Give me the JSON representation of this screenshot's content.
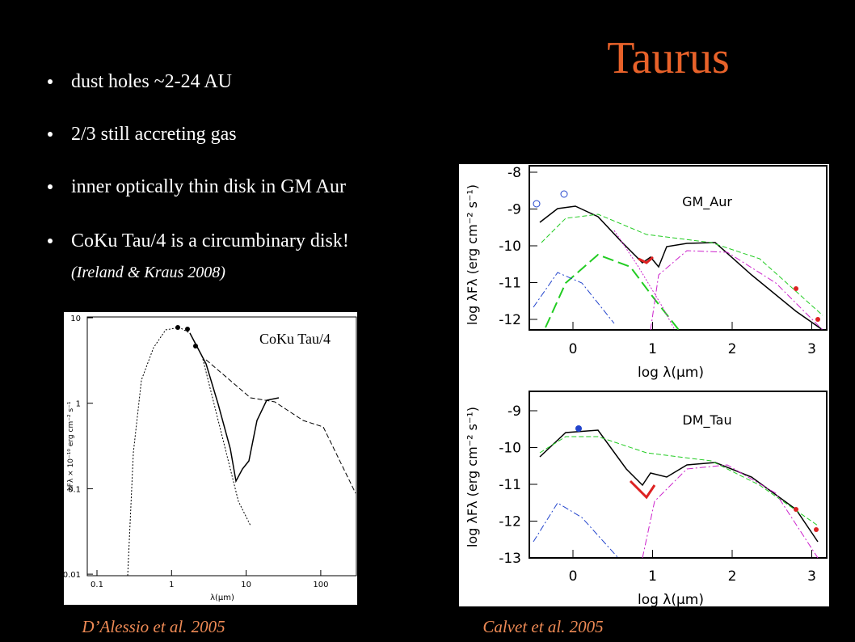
{
  "title": "Taurus",
  "bullets": [
    "dust holes ~2-24 AU",
    "2/3 still accreting gas",
    "inner optically thin disk in GM Aur",
    "CoKu Tau/4 is a circumbinary disk!"
  ],
  "citation": "(Ireland & Kraus 2008)",
  "left_plot": {
    "label": "CoKu Tau/4",
    "yticks": [
      "10",
      "1",
      "0.1",
      "0.01"
    ],
    "xticks": [
      "0.1",
      "1",
      "10",
      "100"
    ],
    "ylabel": "λFλ × 10⁻¹⁰ erg cm⁻² s⁻¹",
    "xlabel": "λ(μm)",
    "credit": "D’Alessio et al. 2005"
  },
  "right_plots": [
    {
      "label": "GM_Aur",
      "yticks": [
        "-8",
        "-9",
        "-10",
        "-11",
        "-12"
      ],
      "xticks": [
        "0",
        "1",
        "2",
        "3"
      ],
      "xlabel": "log λ(μm)",
      "ylabel": "log λFλ (erg cm⁻² s⁻¹)"
    },
    {
      "label": "DM_Tau",
      "yticks": [
        "-9",
        "-10",
        "-11",
        "-12",
        "-13"
      ],
      "xticks": [
        "0",
        "1",
        "2",
        "3"
      ],
      "xlabel": "log λ(μm)",
      "ylabel": "log λFλ (erg cm⁻² s⁻¹)"
    }
  ],
  "right_credit": "Calvet et al. 2005"
}
